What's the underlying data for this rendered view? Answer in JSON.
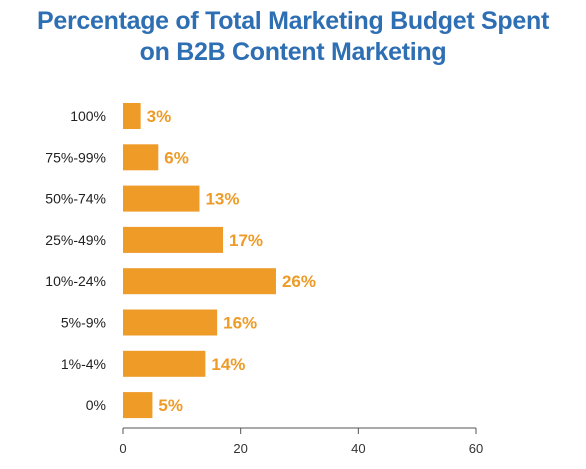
{
  "chart_data": {
    "type": "bar",
    "orientation": "horizontal",
    "title_line1": "Percentage of Total Marketing Budget Spent",
    "title_line2": "on B2B Content Marketing",
    "categories": [
      "100%",
      "75%-99%",
      "50%-74%",
      "25%-49%",
      "10%-24%",
      "5%-9%",
      "1%-4%",
      "0%"
    ],
    "values": [
      3,
      6,
      13,
      17,
      26,
      16,
      14,
      5
    ],
    "value_labels": [
      "3%",
      "6%",
      "13%",
      "17%",
      "26%",
      "16%",
      "14%",
      "5%"
    ],
    "xlim": [
      0,
      60
    ],
    "xticks": [
      "0",
      "20",
      "40",
      "60"
    ],
    "xlabel": "",
    "ylabel": "",
    "grid": false,
    "legend": "none"
  },
  "colors": {
    "bar": "#ee9b28",
    "value_label": "#ee9b28",
    "title": "#2e6fb4",
    "axis": "#555555"
  }
}
